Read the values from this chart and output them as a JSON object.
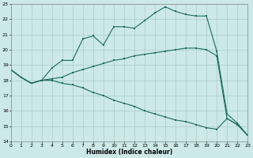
{
  "xlabel": "Humidex (Indice chaleur)",
  "xlim": [
    0,
    23
  ],
  "ylim": [
    14,
    23
  ],
  "yticks": [
    14,
    15,
    16,
    17,
    18,
    19,
    20,
    21,
    22,
    23
  ],
  "xticks": [
    0,
    1,
    2,
    3,
    4,
    5,
    6,
    7,
    8,
    9,
    10,
    11,
    12,
    13,
    14,
    15,
    16,
    17,
    18,
    19,
    20,
    21,
    22,
    23
  ],
  "bg_color": "#cce8e8",
  "grid_color": "#aacccc",
  "line_color": "#1a6b5e",
  "line1_x": [
    0,
    1,
    2,
    3,
    4,
    5,
    6,
    7,
    8,
    9,
    10,
    11,
    12,
    13,
    14,
    15,
    16,
    17,
    18,
    19,
    20,
    21,
    22,
    23
  ],
  "line1_y": [
    18.7,
    18.2,
    17.8,
    18.0,
    18.8,
    19.3,
    19.3,
    20.7,
    20.9,
    20.3,
    21.5,
    21.5,
    21.4,
    21.9,
    22.4,
    22.8,
    22.5,
    22.3,
    22.2,
    22.2,
    19.9,
    15.8,
    15.2,
    14.4
  ],
  "line2_x": [
    0,
    1,
    2,
    3,
    4,
    5,
    6,
    7,
    8,
    9,
    10,
    11,
    12,
    13,
    14,
    15,
    16,
    17,
    18,
    19,
    20,
    21,
    22,
    23
  ],
  "line2_y": [
    18.7,
    18.2,
    17.8,
    18.0,
    18.1,
    18.2,
    18.5,
    18.7,
    18.9,
    19.1,
    19.3,
    19.4,
    19.6,
    19.7,
    19.8,
    19.9,
    20.0,
    20.1,
    20.1,
    20.0,
    19.6,
    15.5,
    15.1,
    14.4
  ],
  "line3_x": [
    0,
    1,
    2,
    3,
    4,
    5,
    6,
    7,
    8,
    9,
    10,
    11,
    12,
    13,
    14,
    15,
    16,
    17,
    18,
    19,
    20,
    21,
    22,
    23
  ],
  "line3_y": [
    18.7,
    18.2,
    17.8,
    18.0,
    18.0,
    17.8,
    17.7,
    17.5,
    17.2,
    17.0,
    16.7,
    16.5,
    16.3,
    16.0,
    15.8,
    15.6,
    15.4,
    15.3,
    15.1,
    14.9,
    14.8,
    15.5,
    15.1,
    14.4
  ]
}
